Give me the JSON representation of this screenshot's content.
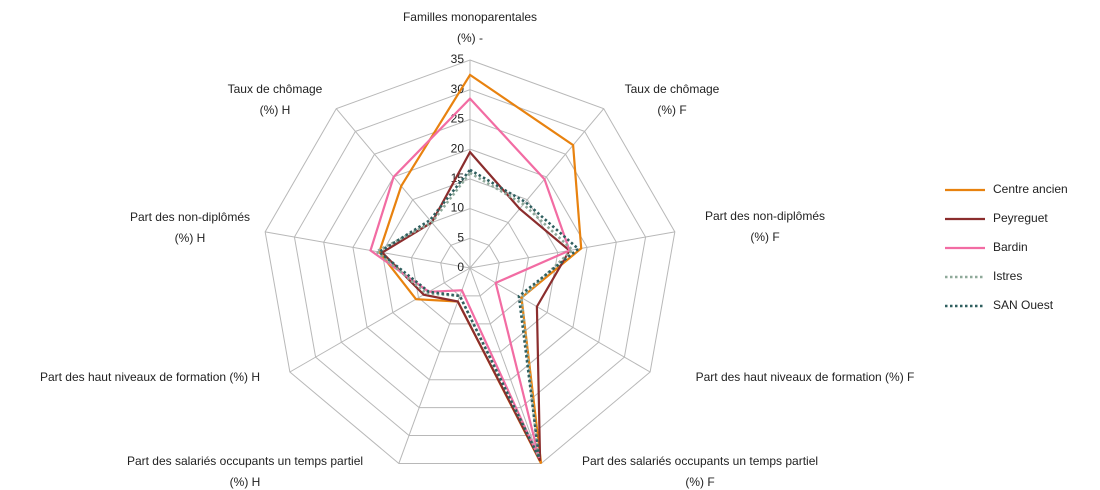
{
  "chart_data": {
    "type": "radar",
    "categories": [
      [
        "Familles monoparentales",
        "(%) -"
      ],
      [
        "Taux de chômage",
        "(%) F"
      ],
      [
        "Part des non-diplômés",
        "(%) F"
      ],
      [
        "Part des haut niveaux de formation (%) F"
      ],
      [
        "Part des salariés occupants un temps partiel",
        "(%) F"
      ],
      [
        "Part des salariés occupants un temps partiel",
        "(%) H"
      ],
      [
        "Part des haut niveaux de formation (%) H"
      ],
      [
        "Part des non-diplômés",
        "(%) H"
      ],
      [
        "Taux de chômage",
        "(%) H"
      ]
    ],
    "series": [
      {
        "name": "Centre ancien",
        "color": "#e8820f",
        "dash": "solid",
        "values": [
          32.5,
          27,
          19,
          10,
          35,
          6,
          10.5,
          15.5,
          18
        ]
      },
      {
        "name": "Peyreguet",
        "color": "#8b2d2d",
        "dash": "solid",
        "values": [
          19.5,
          13,
          17,
          13,
          34.5,
          6,
          9,
          15,
          10
        ]
      },
      {
        "name": "Bardin",
        "color": "#f26ca3",
        "dash": "solid",
        "values": [
          28.5,
          19.5,
          17,
          5,
          34,
          4,
          8,
          17,
          20
        ]
      },
      {
        "name": "Istres",
        "color": "#8fa99a",
        "dash": "dotted",
        "values": [
          16,
          14,
          17.5,
          10,
          33.5,
          5,
          8.5,
          16,
          10
        ]
      },
      {
        "name": "SAN Ouest",
        "color": "#2f5f5f",
        "dash": "dotted",
        "values": [
          16.5,
          14.5,
          18.5,
          9.5,
          34,
          5,
          8,
          15.5,
          10.5
        ]
      }
    ],
    "rlim": [
      0,
      35
    ],
    "rticks": [
      0,
      5,
      10,
      15,
      20,
      25,
      30,
      35
    ],
    "grid": true,
    "legend": "right"
  }
}
